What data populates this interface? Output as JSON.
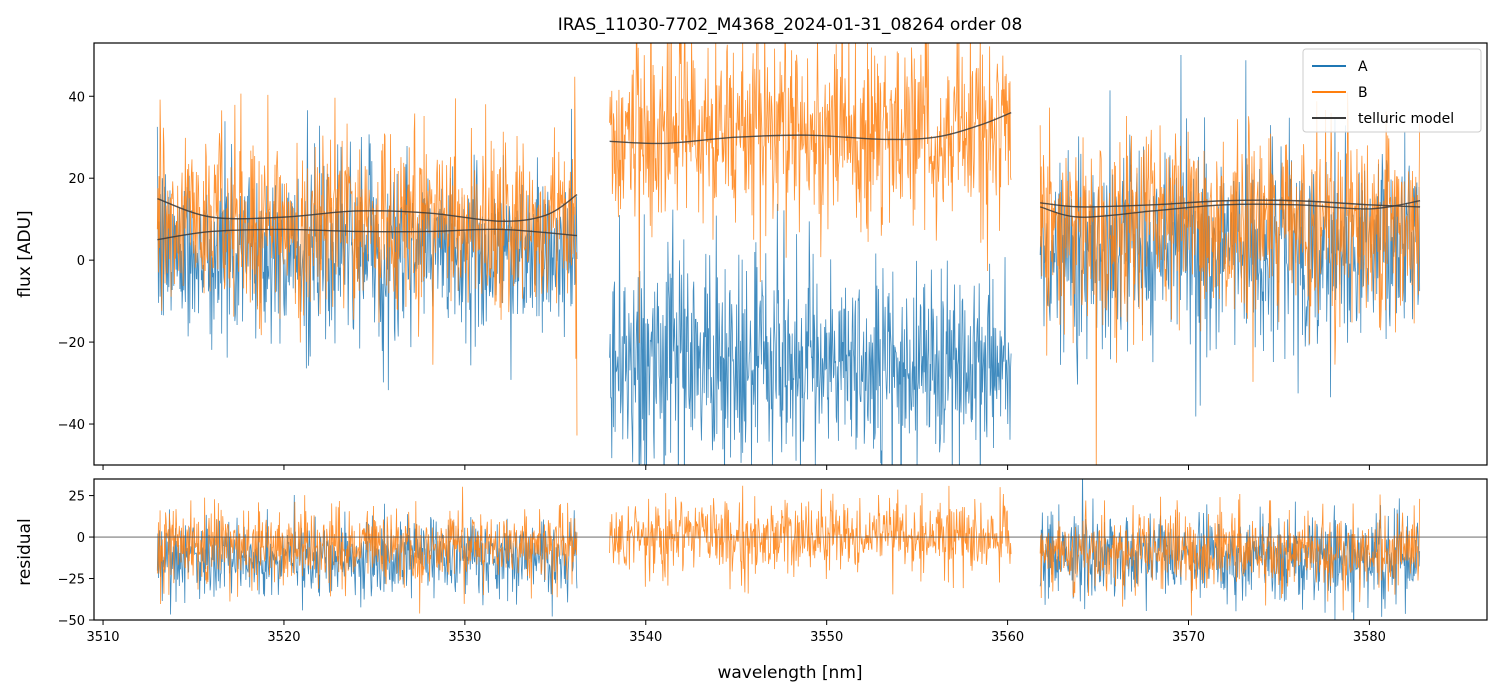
{
  "title": "IRAS_11030-7702_M4368_2024-01-31_08264  order 08",
  "legend": {
    "placement": "top-right",
    "entries": [
      {
        "label": "A",
        "color": "#1f77b4"
      },
      {
        "label": "B",
        "color": "#ff7f0e"
      },
      {
        "label": "telluric model",
        "color": "#3a3a3a"
      }
    ]
  },
  "chart_data": [
    {
      "type": "line",
      "panel": "main",
      "title": "IRAS_11030-7702_M4368_2024-01-31_08264  order 08",
      "xlabel": "",
      "ylabel": "flux [ADU]",
      "xlim": [
        3509.5,
        3586.5
      ],
      "ylim": [
        -50,
        53
      ],
      "yticks": [
        -40,
        -20,
        0,
        20,
        40
      ],
      "ytick_labels": [
        "−40",
        "−20",
        "0",
        "20",
        "40"
      ],
      "xticks": [
        3510,
        3520,
        3530,
        3540,
        3550,
        3560,
        3570,
        3580
      ],
      "segments": [
        {
          "x_range": [
            3513.0,
            3536.2
          ],
          "A_mean": 2,
          "A_sd": 11,
          "B_mean": 9,
          "B_sd": 11
        },
        {
          "x_range": [
            3538.0,
            3560.2
          ],
          "A_mean": -25,
          "A_sd": 12,
          "B_mean": 31,
          "B_sd": 12
        },
        {
          "x_range": [
            3561.8,
            3582.8
          ],
          "A_mean": 3,
          "A_sd": 12,
          "B_mean": 8,
          "B_sd": 11
        }
      ],
      "series": [
        {
          "name": "A",
          "color": "#1f77b4",
          "style": "noisy spectrum"
        },
        {
          "name": "B",
          "color": "#ff7f0e",
          "style": "noisy spectrum"
        },
        {
          "name": "telluric model",
          "color": "#3a3a3a",
          "curves": [
            {
              "x": [
                3513.0,
                3516.0,
                3520.0,
                3524.0,
                3528.0,
                3532.0,
                3534.5,
                3536.2
              ],
              "y": [
                15,
                10.5,
                10.5,
                12,
                11.5,
                9.5,
                11,
                16
              ]
            },
            {
              "x": [
                3513.0,
                3516.0,
                3520.0,
                3524.0,
                3528.0,
                3532.0,
                3536.2
              ],
              "y": [
                5,
                7,
                7.5,
                7,
                7,
                7.5,
                6
              ]
            },
            {
              "x": [
                3538.0,
                3541.0,
                3545.0,
                3549.0,
                3553.0,
                3556.0,
                3558.5,
                3560.2
              ],
              "y": [
                29,
                28.5,
                30,
                30.5,
                29.5,
                30,
                33,
                36
              ]
            },
            {
              "x": [
                3561.8,
                3564.0,
                3568.0,
                3572.0,
                3576.0,
                3580.0,
                3582.8
              ],
              "y": [
                14,
                13,
                13.5,
                14.5,
                14.5,
                13.5,
                13
              ]
            },
            {
              "x": [
                3561.8,
                3564.0,
                3568.0,
                3572.0,
                3576.0,
                3580.0,
                3582.8
              ],
              "y": [
                13,
                10.5,
                12,
                13.5,
                13.5,
                12.5,
                14.5
              ]
            }
          ]
        }
      ]
    },
    {
      "type": "line",
      "panel": "residual",
      "xlabel": "wavelength [nm]",
      "ylabel": "residual",
      "xlim": [
        3509.5,
        3586.5
      ],
      "ylim": [
        -50,
        35
      ],
      "yticks": [
        -50,
        -25,
        0,
        25
      ],
      "ytick_labels": [
        "−50",
        "−25",
        "0",
        "25"
      ],
      "xticks": [
        3510,
        3520,
        3530,
        3540,
        3550,
        3560,
        3570,
        3580
      ],
      "xtick_labels": [
        "3510",
        "3520",
        "3530",
        "3540",
        "3550",
        "3560",
        "3570",
        "3580"
      ],
      "zero_line": 0,
      "segments": [
        {
          "x_range": [
            3513.0,
            3536.2
          ],
          "A_mean": -12,
          "A_sd": 11,
          "B_mean": -5,
          "B_sd": 11
        },
        {
          "x_range": [
            3538.0,
            3560.2
          ],
          "A_mean": null,
          "A_sd": null,
          "B_mean": 0,
          "B_sd": 11
        },
        {
          "x_range": [
            3561.8,
            3582.8
          ],
          "A_mean": -12,
          "A_sd": 13,
          "B_mean": -8,
          "B_sd": 12
        }
      ]
    }
  ]
}
